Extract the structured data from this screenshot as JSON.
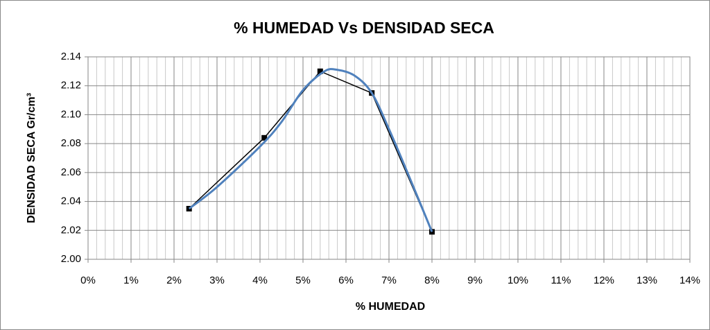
{
  "chart_data": {
    "type": "line",
    "title": "% HUMEDAD Vs DENSIDAD SECA",
    "x_label": "% HUMEDAD",
    "y_label": "DENSIDAD SECA Gr/cm³",
    "xlim": [
      0,
      14
    ],
    "ylim": [
      2.0,
      2.14
    ],
    "xticks": [
      {
        "value": 0,
        "label": "0%"
      },
      {
        "value": 1,
        "label": "1%"
      },
      {
        "value": 2,
        "label": "2%"
      },
      {
        "value": 3,
        "label": "3%"
      },
      {
        "value": 4,
        "label": "4%"
      },
      {
        "value": 5,
        "label": "5%"
      },
      {
        "value": 6,
        "label": "6%"
      },
      {
        "value": 7,
        "label": "7%"
      },
      {
        "value": 8,
        "label": "8%"
      },
      {
        "value": 9,
        "label": "9%"
      },
      {
        "value": 10,
        "label": "10%"
      },
      {
        "value": 11,
        "label": "11%"
      },
      {
        "value": 12,
        "label": "12%"
      },
      {
        "value": 13,
        "label": "13%"
      },
      {
        "value": 14,
        "label": "14%"
      }
    ],
    "yticks": [
      {
        "value": 2.0,
        "label": "2.00"
      },
      {
        "value": 2.02,
        "label": "2.02"
      },
      {
        "value": 2.04,
        "label": "2.04"
      },
      {
        "value": 2.06,
        "label": "2.06"
      },
      {
        "value": 2.08,
        "label": "2.08"
      },
      {
        "value": 2.1,
        "label": "2.10"
      },
      {
        "value": 2.12,
        "label": "2.12"
      },
      {
        "value": 2.14,
        "label": "2.14"
      }
    ],
    "grid": true,
    "x_minor_divisions": 5,
    "series": [
      {
        "color": "#000000",
        "marker": "square",
        "smooth": false,
        "x": [
          2.35,
          4.1,
          5.4,
          6.6,
          8.0
        ],
        "values": [
          2.035,
          2.084,
          2.13,
          2.115,
          2.019
        ]
      },
      {
        "color": "#4f81bd",
        "smooth": true,
        "x": [
          2.35,
          3,
          4,
          4.5,
          5,
          5.5,
          5.8,
          6.2,
          6.6,
          7,
          7.5,
          8
        ],
        "values": [
          2.035,
          2.05,
          2.078,
          2.095,
          2.117,
          2.13,
          2.131,
          2.127,
          2.115,
          2.09,
          2.055,
          2.019
        ]
      }
    ]
  }
}
